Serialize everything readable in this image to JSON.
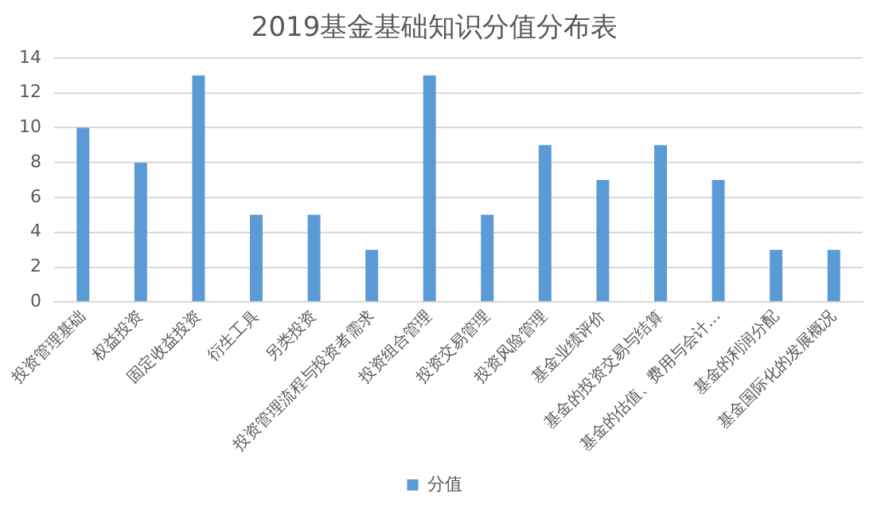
{
  "chart_data": {
    "type": "bar",
    "title": "2019基金基础知识分值分布表",
    "categories": [
      "投资管理基础",
      "权益投资",
      "固定收益投资",
      "衍生工具",
      "另类投资",
      "投资管理流程与投资者需求",
      "投资组合管理",
      "投资交易管理",
      "投资风险管理",
      "基金业绩评价",
      "基金的投资交易与结算",
      "基金的估值、费用与会计…",
      "基金的利润分配",
      "基金国际化的发展概况"
    ],
    "series": [
      {
        "name": "分值",
        "color": "#5b9bd5",
        "values": [
          10,
          8,
          13,
          5,
          5,
          3,
          13,
          5,
          9,
          7,
          9,
          7,
          3,
          3
        ]
      }
    ],
    "ylim": [
      0,
      14
    ],
    "yticks": [
      0,
      2,
      4,
      6,
      8,
      10,
      12,
      14
    ],
    "grid": "y",
    "legend": "bottom"
  }
}
